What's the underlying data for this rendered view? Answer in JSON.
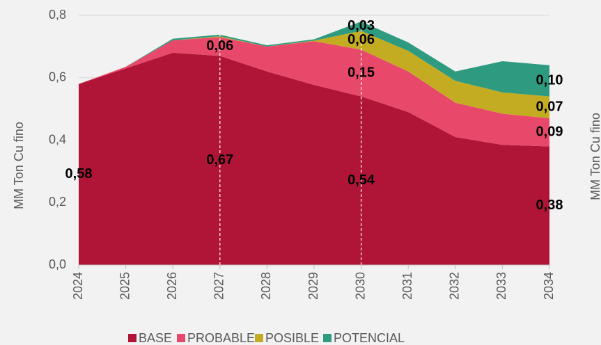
{
  "chart_data": {
    "type": "stacked-area",
    "ylabel": "MM Ton Cu fino",
    "y2label": "MM Ton Cu fino",
    "categories": [
      "2024",
      "2025",
      "2026",
      "2027",
      "2028",
      "2029",
      "2030",
      "2031",
      "2032",
      "2033",
      "2034"
    ],
    "ylim": [
      0,
      0.8
    ],
    "yticks": [
      {
        "value": 0,
        "label": "0,0"
      },
      {
        "value": 0.2,
        "label": "0,2"
      },
      {
        "value": 0.4,
        "label": "0,4"
      },
      {
        "value": 0.6,
        "label": "0,6"
      },
      {
        "value": 0.8,
        "label": "0,8"
      }
    ],
    "grid": true,
    "legend": "bottom",
    "series": [
      {
        "name": "BASE",
        "color": "#b01538",
        "values": [
          0.58,
          0.63,
          0.68,
          0.67,
          0.62,
          0.577,
          0.54,
          0.49,
          0.41,
          0.385,
          0.38
        ],
        "value_labels": [
          "0,58",
          null,
          null,
          "0,67",
          null,
          null,
          "0,54",
          null,
          null,
          null,
          "0,38"
        ]
      },
      {
        "name": "PROBABLE",
        "color": "#e8496a",
        "values": [
          0,
          0.005,
          0.04,
          0.06,
          0.08,
          0.14,
          0.15,
          0.13,
          0.11,
          0.1,
          0.09
        ],
        "value_labels": [
          null,
          null,
          null,
          "0,06",
          null,
          null,
          "0,15",
          null,
          null,
          null,
          "0,09"
        ]
      },
      {
        "name": "POSIBLE",
        "color": "#c4ac22",
        "values": [
          0,
          0,
          0,
          0.003,
          0,
          0.002,
          0.06,
          0.066,
          0.07,
          0.068,
          0.07
        ],
        "value_labels": [
          null,
          null,
          null,
          null,
          null,
          null,
          "0,06",
          null,
          null,
          null,
          "0,07"
        ]
      },
      {
        "name": "POTENCIAL",
        "color": "#2e9a80",
        "values": [
          0,
          0,
          0.005,
          0.005,
          0.004,
          0.004,
          0.03,
          0.027,
          0.03,
          0.1,
          0.1
        ],
        "value_labels": [
          null,
          null,
          null,
          null,
          null,
          null,
          "0,03",
          null,
          null,
          null,
          "0,10"
        ]
      }
    ]
  }
}
